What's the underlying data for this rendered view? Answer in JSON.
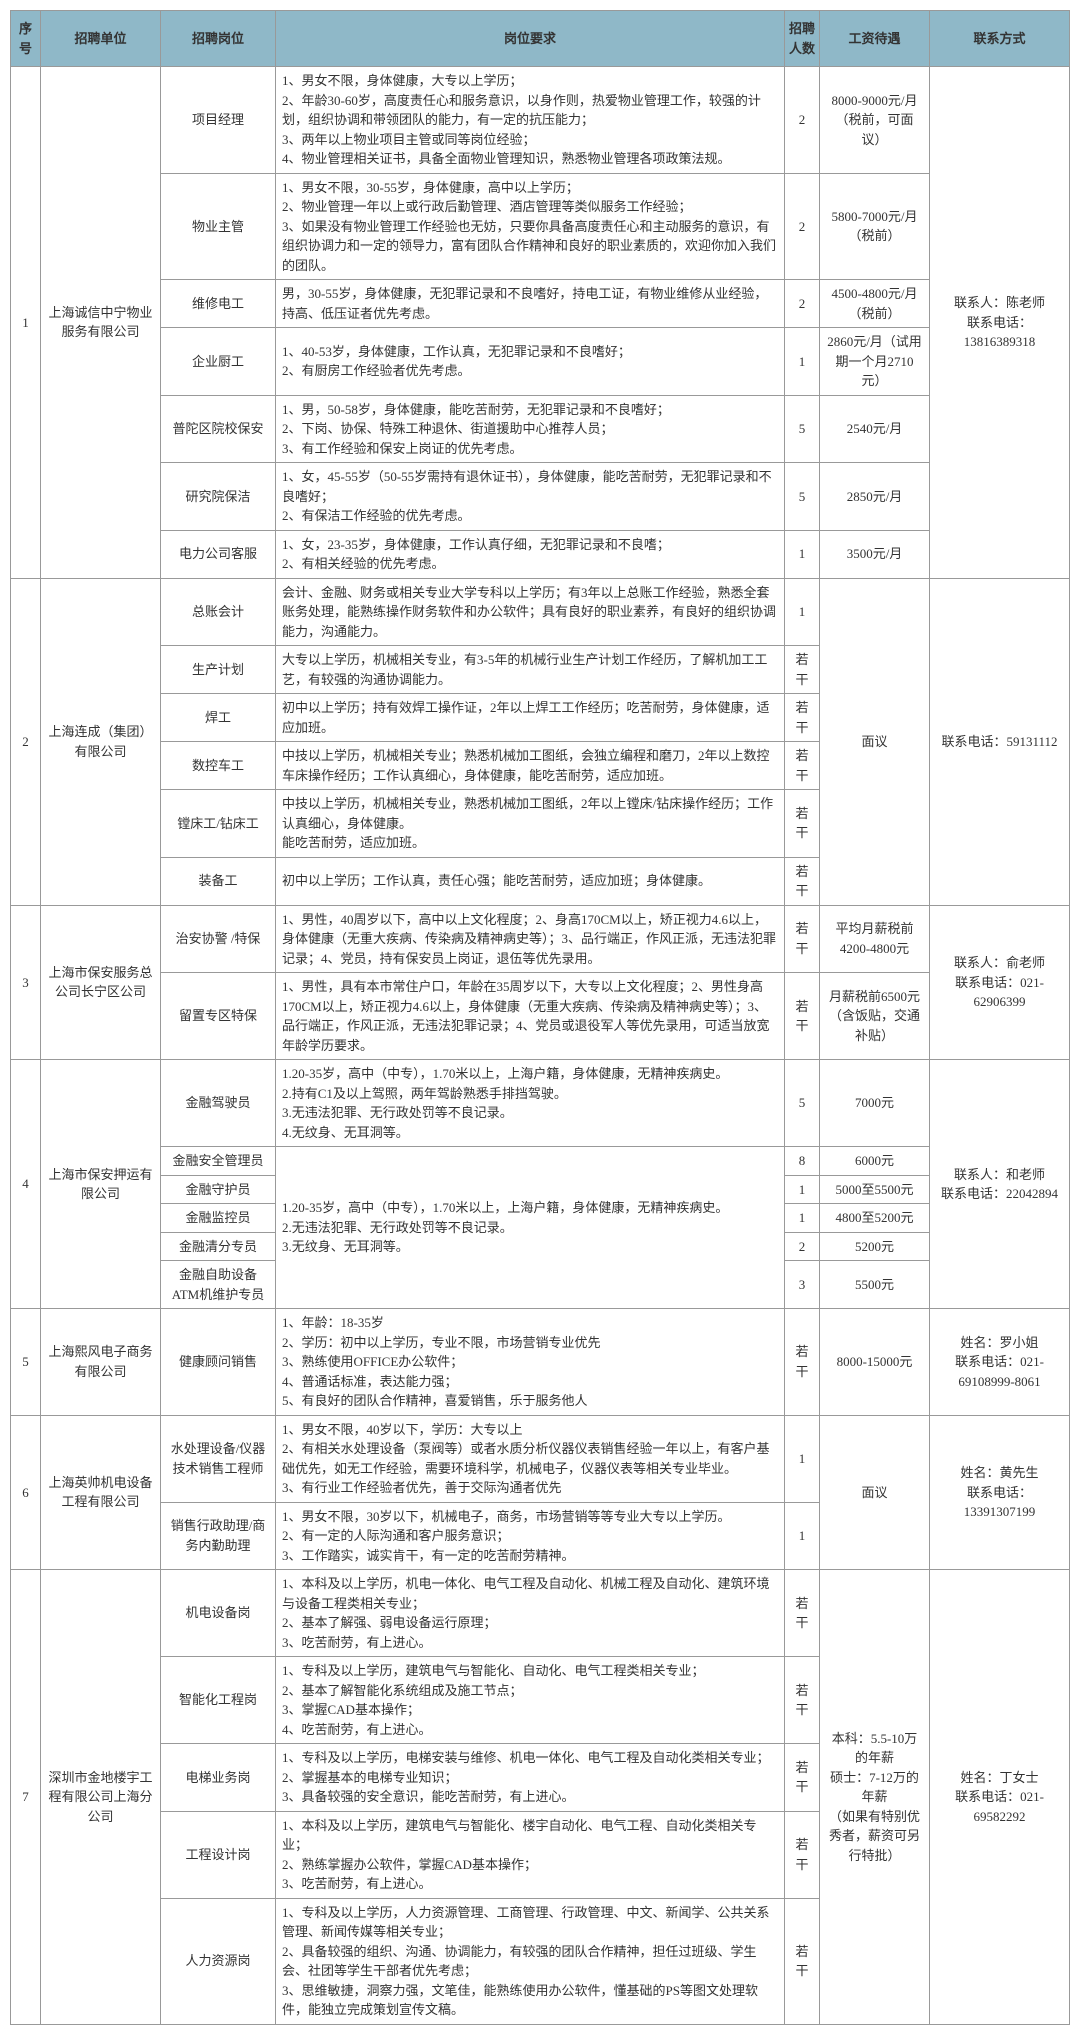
{
  "headers": {
    "seq": "序号",
    "company": "招聘单位",
    "position": "招聘岗位",
    "requirements": "岗位要求",
    "count": "招聘人数",
    "salary": "工资待遇",
    "contact": "联系方式"
  },
  "groups": [
    {
      "seq": "1",
      "company": "上海诚信中宁物业服务有限公司",
      "contact": "联系人：陈老师\n联系电话：13816389318",
      "rows": [
        {
          "position": "项目经理",
          "req": "1、男女不限，身体健康，大专以上学历；\n2、年龄30-60岁，高度责任心和服务意识，以身作则，热爱物业管理工作，较强的计划，组织协调和带领团队的能力，有一定的抗压能力；\n3、两年以上物业项目主管或同等岗位经验；\n4、物业管理相关证书，具备全面物业管理知识，熟悉物业管理各项政策法规。",
          "count": "2",
          "salary": "8000-9000元/月（税前，可面议）"
        },
        {
          "position": "物业主管",
          "req": "1、男女不限，30-55岁，身体健康，高中以上学历；\n2、物业管理一年以上或行政后勤管理、酒店管理等类似服务工作经验；\n3、如果没有物业管理工作经验也无妨，只要你具备高度责任心和主动服务的意识，有组织协调力和一定的领导力，富有团队合作精神和良好的职业素质的，欢迎你加入我们的团队。",
          "count": "2",
          "salary": "5800-7000元/月（税前）"
        },
        {
          "position": "维修电工",
          "req": "男，30-55岁，身体健康，无犯罪记录和不良嗜好，持电工证，有物业维修从业经验，持高、低压证者优先考虑。",
          "count": "2",
          "salary": "4500-4800元/月（税前）"
        },
        {
          "position": "企业厨工",
          "req": "1、40-53岁，身体健康，工作认真，无犯罪记录和不良嗜好；\n2、有厨房工作经验者优先考虑。",
          "count": "1",
          "salary": "2860元/月（试用期一个月2710元）"
        },
        {
          "position": "普陀区院校保安",
          "req": "1、男，50-58岁，身体健康，能吃苦耐劳，无犯罪记录和不良嗜好；\n2、下岗、协保、特殊工种退休、街道援助中心推荐人员；\n3、有工作经验和保安上岗证的优先考虑。",
          "count": "5",
          "salary": "2540元/月"
        },
        {
          "position": "研究院保洁",
          "req": "1、女，45-55岁（50-55岁需持有退休证书），身体健康，能吃苦耐劳，无犯罪记录和不良嗜好；\n2、有保洁工作经验的优先考虑。",
          "count": "5",
          "salary": "2850元/月"
        },
        {
          "position": "电力公司客服",
          "req": "1、女，23-35岁，身体健康，工作认真仔细，无犯罪记录和不良嗜；\n2、有相关经验的优先考虑。",
          "count": "1",
          "salary": "3500元/月"
        }
      ]
    },
    {
      "seq": "2",
      "company": "上海连成（集团）有限公司",
      "contact": "联系电话：59131112",
      "salary_merged": "面议",
      "rows": [
        {
          "position": "总账会计",
          "req": "会计、金融、财务或相关专业大学专科以上学历；有3年以上总账工作经验，熟悉全套账务处理，能熟练操作财务软件和办公软件；具有良好的职业素养，有良好的组织协调能力，沟通能力。",
          "count": "1"
        },
        {
          "position": "生产计划",
          "req": "大专以上学历，机械相关专业，有3-5年的机械行业生产计划工作经历，了解机加工工艺，有较强的沟通协调能力。",
          "count": "若干"
        },
        {
          "position": "焊工",
          "req": "初中以上学历；持有效焊工操作证，2年以上焊工工作经历；吃苦耐劳，身体健康，适应加班。",
          "count": "若干"
        },
        {
          "position": "数控车工",
          "req": "中技以上学历，机械相关专业；熟悉机械加工图纸，会独立编程和磨刀，2年以上数控车床操作经历；工作认真细心，身体健康，能吃苦耐劳，适应加班。",
          "count": "若干"
        },
        {
          "position": "镗床工/钻床工",
          "req": "中技以上学历，机械相关专业，熟悉机械加工图纸，2年以上镗床/钻床操作经历；工作认真细心，身体健康。\n能吃苦耐劳，适应加班。",
          "count": "若干"
        },
        {
          "position": "装备工",
          "req": "初中以上学历；工作认真，责任心强；能吃苦耐劳，适应加班；身体健康。",
          "count": "若干"
        }
      ]
    },
    {
      "seq": "3",
      "company": "上海市保安服务总公司长宁区公司",
      "contact": "联系人：俞老师\n联系电话：021-62906399",
      "rows": [
        {
          "position": "治安协警 /特保",
          "req": "1、男性，40周岁以下，高中以上文化程度；2、身高170CM以上，矫正视力4.6以上，身体健康（无重大疾病、传染病及精神病史等）；3、品行端正，作风正派，无违法犯罪记录；4、党员，持有保安员上岗证，退伍等优先录用。",
          "count": "若干",
          "salary": "平均月薪税前4200-4800元"
        },
        {
          "position": "留置专区特保",
          "req": "1、男性，具有本市常住户口，年龄在35周岁以下，大专以上文化程度；2、男性身高170CM以上，矫正视力4.6以上，身体健康（无重大疾病、传染病及精神病史等）；3、品行端正，作风正派，无违法犯罪记录；4、党员或退役军人等优先录用，可适当放宽年龄学历要求。",
          "count": "若干",
          "salary": "月薪税前6500元（含饭贴，交通补贴）"
        }
      ]
    },
    {
      "seq": "4",
      "company": "上海市保安押运有限公司",
      "contact": "联系人：和老师\n联系电话：22042894",
      "rows": [
        {
          "position": "金融驾驶员",
          "req": "1.20-35岁，高中（中专），1.70米以上，上海户籍，身体健康，无精神疾病史。\n2.持有C1及以上驾照，两年驾龄熟悉手排挡驾驶。\n3.无违法犯罪、无行政处罚等不良记录。\n4.无纹身、无耳洞等。",
          "count": "5",
          "salary": "7000元"
        },
        {
          "position": "金融安全管理员",
          "req_merged": true,
          "count": "8",
          "salary": "6000元"
        },
        {
          "position": "金融守护员",
          "req_merged": true,
          "count": "1",
          "salary": "5000至5500元"
        },
        {
          "position": "金融监控员",
          "req_merged": true,
          "count": "1",
          "salary": "4800至5200元"
        },
        {
          "position": "金融清分专员",
          "req_merged": true,
          "count": "2",
          "salary": "5200元"
        },
        {
          "position": "金融自助设备ATM机维护专员",
          "req_merged": true,
          "count": "3",
          "salary": "5500元"
        }
      ],
      "merged_req": "1.20-35岁，高中（中专），1.70米以上，上海户籍，身体健康，无精神疾病史。\n2.无违法犯罪、无行政处罚等不良记录。\n3.无纹身、无耳洞等。"
    },
    {
      "seq": "5",
      "company": "上海熙风电子商务有限公司",
      "contact": "姓名：罗小姐\n联系电话：021-69108999-8061",
      "rows": [
        {
          "position": "健康顾问销售",
          "req": "1、年龄：18-35岁\n2、学历：初中以上学历，专业不限，市场营销专业优先\n3、熟练使用OFFICE办公软件；\n4、普通话标准，表达能力强；\n5、有良好的团队合作精神，喜爱销售，乐于服务他人",
          "count": "若干",
          "salary": "8000-15000元"
        }
      ]
    },
    {
      "seq": "6",
      "company": "上海英帅机电设备工程有限公司",
      "contact": "姓名：黄先生\n联系电话：13391307199",
      "salary_merged": "面议",
      "rows": [
        {
          "position": "水处理设备/仪器技术销售工程师",
          "req": "1、男女不限，40岁以下，学历：大专以上\n2、有相关水处理设备（泵阀等）或者水质分析仪器仪表销售经验一年以上，有客户基础优先，如无工作经验，需要环境科学，机械电子，仪器仪表等相关专业毕业。\n3、有行业工作经验者优先，善于交际沟通者优先",
          "count": "1"
        },
        {
          "position": "销售行政助理/商务内勤助理",
          "req": "1、男女不限，30岁以下，机械电子，商务，市场营销等等专业大专以上学历。\n2、有一定的人际沟通和客户服务意识；\n3、工作踏实，诚实肯干，有一定的吃苦耐劳精神。",
          "count": "1"
        }
      ]
    },
    {
      "seq": "7",
      "company": "深圳市金地楼宇工程有限公司上海分公司",
      "contact": "姓名：丁女士\n联系电话：021-69582292",
      "salary_merged": "本科：5.5-10万的年薪\n硕士：7-12万的年薪\n（如果有特别优秀者，薪资可另行特批）",
      "rows": [
        {
          "position": "机电设备岗",
          "req": "1、本科及以上学历，机电一体化、电气工程及自动化、机械工程及自动化、建筑环境与设备工程类相关专业；\n2、基本了解强、弱电设备运行原理；\n3、吃苦耐劳，有上进心。",
          "count": "若干"
        },
        {
          "position": "智能化工程岗",
          "req": "1、专科及以上学历，建筑电气与智能化、自动化、电气工程类相关专业；\n2、基本了解智能化系统组成及施工节点；\n3、掌握CAD基本操作；\n4、吃苦耐劳，有上进心。",
          "count": "若干"
        },
        {
          "position": "电梯业务岗",
          "req": "1、专科及以上学历，电梯安装与维修、机电一体化、电气工程及自动化类相关专业；\n2、掌握基本的电梯专业知识；\n3、具备较强的安全意识，能吃苦耐劳，有上进心。",
          "count": "若干"
        },
        {
          "position": "工程设计岗",
          "req": "1、本科及以上学历，建筑电气与智能化、楼宇自动化、电气工程、自动化类相关专业；\n2、熟练掌握办公软件，掌握CAD基本操作；\n3、吃苦耐劳，有上进心。",
          "count": "若干"
        },
        {
          "position": "人力资源岗",
          "req": "1、专科及以上学历，人力资源管理、工商管理、行政管理、中文、新闻学、公共关系管理、新闻传媒等相关专业；\n2、具备较强的组织、沟通、协调能力，有较强的团队合作精神，担任过班级、学生会、社团等学生干部者优先考虑；\n3、思维敏捷，洞察力强，文笔佳，能熟练使用办公软件，懂基础的PS等图文处理软件，能独立完成策划宣传文稿。",
          "count": "若干"
        }
      ]
    }
  ]
}
